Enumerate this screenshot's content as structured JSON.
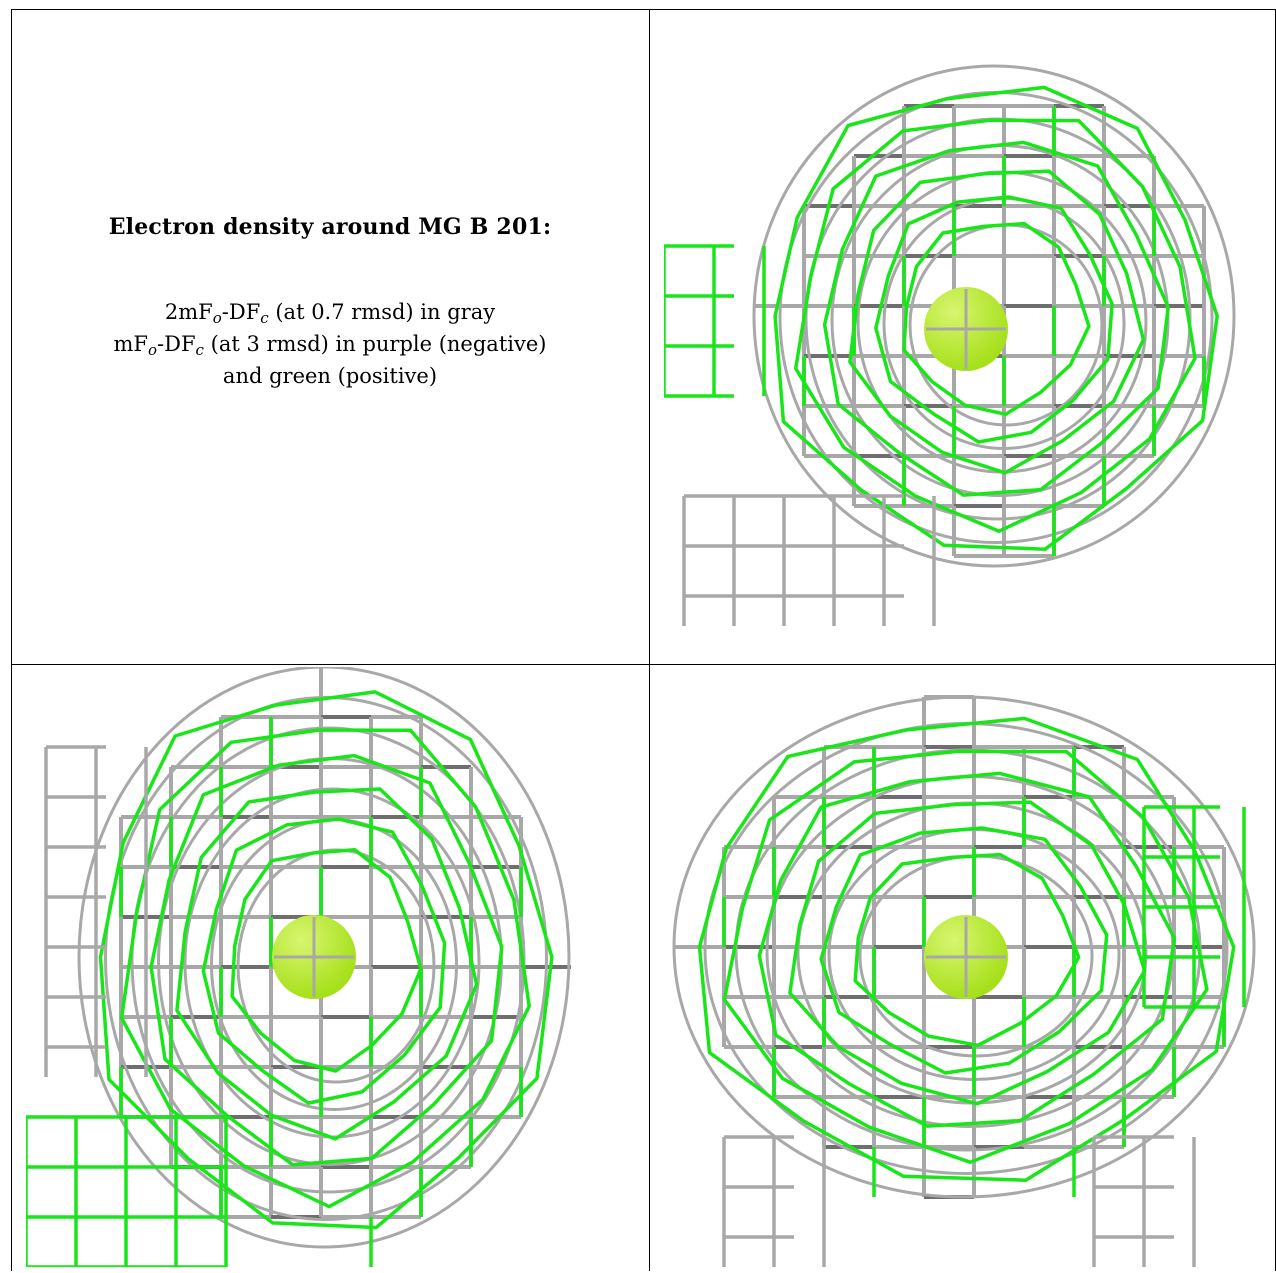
{
  "caption": {
    "title": "Electron density around MG B 201:",
    "legend": [
      {
        "prefix": "2mF",
        "sub1": "o",
        "mid": "-DF",
        "sub2": "c",
        "suffix": " (at 0.7 rmsd) in gray"
      },
      {
        "prefix": "mF",
        "sub1": "o",
        "mid": "-DF",
        "sub2": "c",
        "suffix": " (at 3 rmsd) in purple (negative)"
      },
      {
        "text": "and green (positive)"
      }
    ]
  },
  "colors": {
    "gray_mesh": "#a8a8a8",
    "gray_mesh_dark": "#6e6e6e",
    "green_mesh": "#19e619",
    "atom": "#a6e01a",
    "atom_highlight": "#d8f570",
    "border": "#000000"
  },
  "panels": [
    {
      "name": "density-view-top-right",
      "atom": "MG B 201"
    },
    {
      "name": "density-view-bottom-left",
      "atom": "MG B 201"
    },
    {
      "name": "density-view-bottom-right",
      "atom": "MG B 201"
    }
  ]
}
